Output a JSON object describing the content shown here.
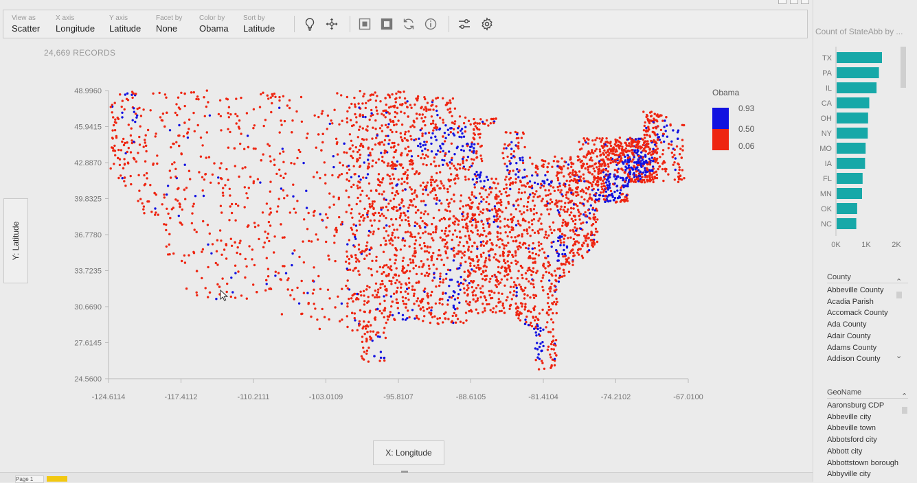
{
  "toolbar": {
    "fields": [
      {
        "caption": "View as",
        "value": "Scatter"
      },
      {
        "caption": "X axis",
        "value": "Longitude"
      },
      {
        "caption": "Y axis",
        "value": "Latitude"
      },
      {
        "caption": "Facet by",
        "value": "None"
      },
      {
        "caption": "Color by",
        "value": "Obama"
      },
      {
        "caption": "Sort by",
        "value": "Latitude"
      }
    ],
    "icons": [
      "lightbulb-icon",
      "move-icon",
      "select-rect-icon",
      "select-fill-icon",
      "refresh-icon",
      "info-icon",
      "sliders-icon",
      "gear-icon"
    ]
  },
  "records_label": "24,669 RECORDS",
  "axis_buttons": {
    "y": "Y: Latitude",
    "x": "X: Longitude"
  },
  "legend": {
    "title": "Obama",
    "labels": [
      "0.93",
      "0.50",
      "0.06"
    ],
    "colors": {
      "high": "#1212e0",
      "low": "#ee2511"
    }
  },
  "chart_data": {
    "type": "scatter",
    "title": "",
    "x_ticks": [
      "-124.6114",
      "-117.4112",
      "-110.2111",
      "-103.0109",
      "-95.8107",
      "-88.6105",
      "-81.4104",
      "-74.2102",
      "-67.0100"
    ],
    "y_ticks": [
      "48.9960",
      "45.9415",
      "42.8870",
      "39.8325",
      "36.7780",
      "33.7235",
      "30.6690",
      "27.6145",
      "24.5600"
    ],
    "xlim": [
      -124.6114,
      -67.01
    ],
    "ylim": [
      24.56,
      48.996
    ],
    "xlabel": "X: Longitude",
    "ylabel": "Y: Latitude",
    "color_field": "Obama",
    "color_scale": {
      "min": 0.06,
      "mid": 0.5,
      "max": 0.93
    }
  },
  "bar_chart": {
    "title": "Count of StateAbb by ...",
    "type": "bar",
    "categories": [
      "TX",
      "PA",
      "IL",
      "CA",
      "OH",
      "NY",
      "MO",
      "IA",
      "FL",
      "MN",
      "OK",
      "NC"
    ],
    "values": [
      1500,
      1400,
      1320,
      1080,
      1040,
      1030,
      960,
      940,
      860,
      840,
      680,
      650
    ],
    "x_ticks": [
      "0K",
      "1K",
      "2K"
    ],
    "xlim": [
      0,
      2000
    ],
    "bar_color": "#17a8a8"
  },
  "county_slicer": {
    "header": "County",
    "items": [
      "Abbeville County",
      "Acadia Parish",
      "Accomack County",
      "Ada County",
      "Adair County",
      "Adams County",
      "Addison County"
    ]
  },
  "geoname_slicer": {
    "header": "GeoName",
    "items": [
      "Aaronsburg CDP",
      "Abbeville city",
      "Abbeville town",
      "Abbotsford city",
      "Abbott city",
      "Abbottstown borough",
      "Abbyville city"
    ]
  },
  "page_tabs": [
    "Page 1"
  ]
}
